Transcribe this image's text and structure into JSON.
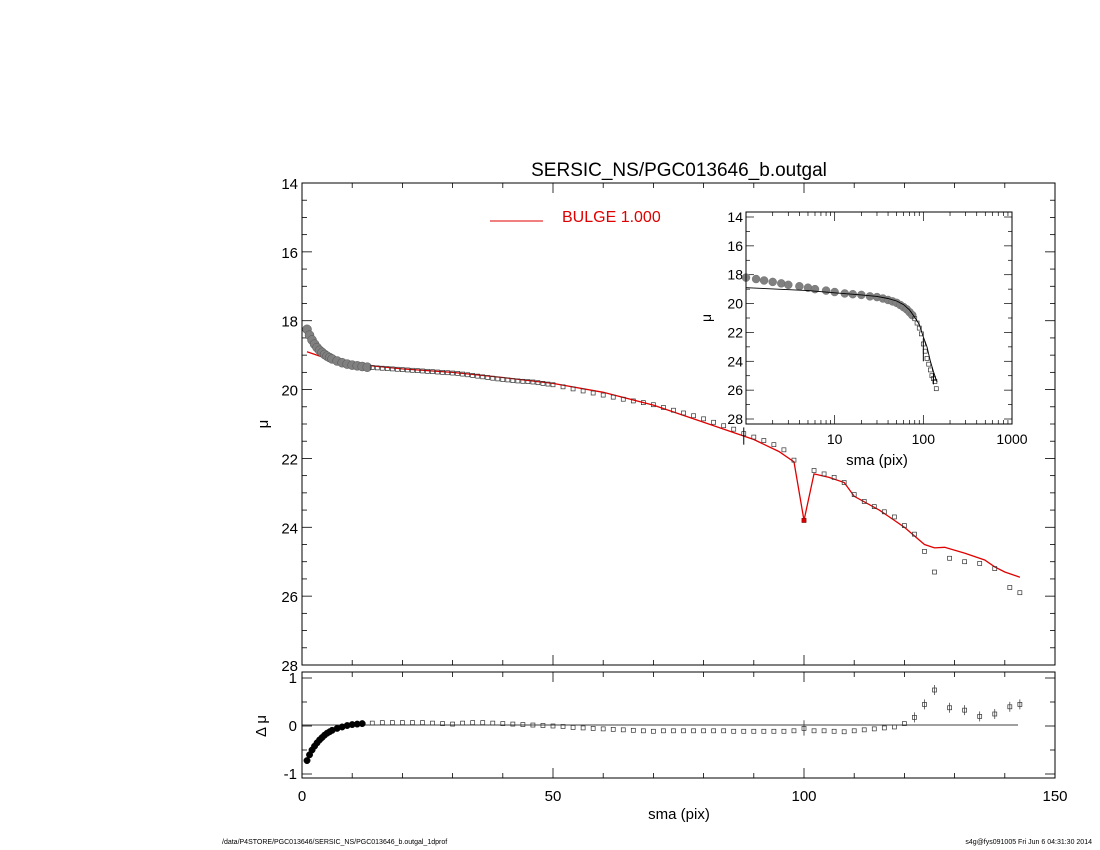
{
  "chart_data": [
    {
      "type": "scatter",
      "title": "SERSIC_NS/PGC013646_b.outgal",
      "xlabel": "",
      "ylabel": "μ",
      "xlim": [
        0,
        150
      ],
      "ylim": [
        28,
        14
      ],
      "y_inverted": true,
      "x_ticks": [
        0,
        50,
        100,
        150
      ],
      "y_ticks": [
        14,
        16,
        18,
        20,
        22,
        24,
        26,
        28
      ],
      "y_tick_labels": [
        "14",
        "16",
        "18",
        "20",
        "22",
        "24",
        "26",
        "28"
      ],
      "legend": {
        "label": "BULGE  1.000",
        "color": "#e00000",
        "placement": "top-center"
      },
      "series": [
        {
          "kind": "data-points",
          "x": [
            1,
            1.5,
            2,
            2.5,
            3,
            3.5,
            4,
            4.5,
            5,
            5.5,
            6,
            7,
            8,
            9,
            10,
            11,
            12,
            13,
            14,
            15,
            16,
            17,
            18,
            19,
            20,
            21,
            22,
            23,
            24,
            25,
            26,
            27,
            28,
            29,
            30,
            31,
            32,
            33,
            34,
            35,
            36,
            37,
            38,
            39,
            40,
            41,
            42,
            43,
            44,
            45,
            46,
            47,
            48,
            49,
            50,
            52,
            54,
            56,
            58,
            60,
            62,
            64,
            66,
            68,
            70,
            72,
            74,
            76,
            78,
            80,
            82,
            84,
            86,
            88,
            90,
            92,
            94,
            96,
            98,
            100,
            102,
            104,
            106,
            108,
            110,
            112,
            114,
            116,
            118,
            120,
            122,
            124,
            126,
            129,
            132,
            135,
            138,
            141,
            143
          ],
          "values": [
            18.25,
            18.42,
            18.56,
            18.68,
            18.78,
            18.86,
            18.92,
            18.98,
            19.03,
            19.07,
            19.11,
            19.17,
            19.22,
            19.26,
            19.29,
            19.31,
            19.33,
            19.35,
            19.36,
            19.37,
            19.38,
            19.39,
            19.4,
            19.41,
            19.42,
            19.43,
            19.44,
            19.45,
            19.46,
            19.47,
            19.48,
            19.49,
            19.5,
            19.51,
            19.52,
            19.53,
            19.55,
            19.57,
            19.59,
            19.61,
            19.63,
            19.65,
            19.67,
            19.69,
            19.71,
            19.72,
            19.74,
            19.75,
            19.76,
            19.77,
            19.78,
            19.8,
            19.82,
            19.84,
            19.86,
            19.92,
            19.98,
            20.04,
            20.1,
            20.16,
            20.22,
            20.28,
            20.33,
            20.38,
            20.44,
            20.52,
            20.6,
            20.68,
            20.76,
            20.85,
            20.95,
            21.05,
            21.15,
            21.28,
            21.38,
            21.48,
            21.6,
            21.75,
            22.05,
            23.8,
            22.35,
            22.45,
            22.55,
            22.7,
            23.05,
            23.25,
            23.4,
            23.55,
            23.7,
            23.95,
            24.2,
            24.7,
            25.3,
            24.9,
            25.0,
            25.05,
            25.2,
            25.75,
            25.9
          ]
        },
        {
          "kind": "model",
          "name": "BULGE  1.000",
          "color": "#e00000",
          "x": [
            1,
            5,
            10,
            20,
            30,
            40,
            50,
            60,
            70,
            80,
            90,
            95,
            98,
            100,
            102,
            105,
            108,
            110,
            115,
            118,
            120,
            122,
            124,
            126,
            128,
            132,
            136,
            138,
            140,
            143
          ],
          "values": [
            18.9,
            19.1,
            19.25,
            19.4,
            19.5,
            19.65,
            19.82,
            20.08,
            20.45,
            20.95,
            21.45,
            21.8,
            22.1,
            23.8,
            22.45,
            22.55,
            22.7,
            23.1,
            23.5,
            23.8,
            24.0,
            24.25,
            24.5,
            24.6,
            24.58,
            24.75,
            24.95,
            25.15,
            25.3,
            25.45
          ]
        }
      ]
    },
    {
      "type": "scatter",
      "xlabel": "sma (pix)",
      "ylabel": "Δ μ",
      "xlim": [
        0,
        150
      ],
      "ylim": [
        -1,
        1
      ],
      "x_ticks": [
        0,
        50,
        100,
        150
      ],
      "y_ticks": [
        -1,
        0,
        1
      ],
      "y_tick_labels": [
        "-1",
        "0",
        "1"
      ],
      "x_tick_labels": [
        "0",
        "50",
        "100",
        "150"
      ],
      "series": [
        {
          "kind": "residuals",
          "x": [
            1,
            1.5,
            2,
            2.5,
            3,
            3.5,
            4,
            4.5,
            5,
            5.5,
            6,
            7,
            8,
            9,
            10,
            11,
            12,
            14,
            16,
            18,
            20,
            22,
            24,
            26,
            28,
            30,
            32,
            34,
            36,
            38,
            40,
            42,
            44,
            46,
            48,
            50,
            52,
            54,
            56,
            58,
            60,
            62,
            64,
            66,
            68,
            70,
            72,
            74,
            76,
            78,
            80,
            82,
            84,
            86,
            88,
            90,
            92,
            94,
            96,
            98,
            100,
            102,
            104,
            106,
            108,
            110,
            112,
            114,
            116,
            118,
            120,
            122,
            124,
            126,
            129,
            132,
            135,
            138,
            141,
            143
          ],
          "values": [
            -0.72,
            -0.6,
            -0.5,
            -0.42,
            -0.35,
            -0.29,
            -0.24,
            -0.19,
            -0.15,
            -0.12,
            -0.09,
            -0.05,
            -0.02,
            0.01,
            0.03,
            0.04,
            0.05,
            0.06,
            0.07,
            0.07,
            0.07,
            0.07,
            0.07,
            0.06,
            0.05,
            0.04,
            0.06,
            0.07,
            0.07,
            0.06,
            0.05,
            0.04,
            0.03,
            0.02,
            0.01,
            0.0,
            -0.01,
            -0.03,
            -0.04,
            -0.05,
            -0.06,
            -0.07,
            -0.08,
            -0.09,
            -0.1,
            -0.11,
            -0.1,
            -0.1,
            -0.1,
            -0.1,
            -0.1,
            -0.1,
            -0.1,
            -0.11,
            -0.11,
            -0.11,
            -0.11,
            -0.11,
            -0.11,
            -0.1,
            -0.05,
            -0.1,
            -0.1,
            -0.11,
            -0.12,
            -0.1,
            -0.08,
            -0.06,
            -0.04,
            -0.02,
            0.05,
            0.18,
            0.45,
            0.75,
            0.38,
            0.33,
            0.2,
            0.25,
            0.4,
            0.45
          ]
        }
      ]
    },
    {
      "type": "scatter",
      "kind": "inset",
      "xlabel": "sma (pix)",
      "ylabel": "μ",
      "x_scale": "log",
      "xlim": [
        1,
        1000
      ],
      "ylim": [
        28,
        14
      ],
      "y_inverted": true,
      "x_tick_labels": [
        "10",
        "100",
        "1000"
      ],
      "x_ticks": [
        10,
        100,
        1000
      ],
      "y_ticks": [
        14,
        16,
        18,
        20,
        22,
        24,
        26,
        28
      ],
      "y_tick_labels": [
        "14",
        "16",
        "18",
        "20",
        "22",
        "24",
        "26",
        "28"
      ],
      "series": [
        {
          "kind": "data-points",
          "x": [
            1,
            1.3,
            1.6,
            2,
            2.5,
            3,
            4,
            5,
            6,
            8,
            10,
            13,
            16,
            20,
            25,
            30,
            35,
            40,
            45,
            50,
            55,
            60,
            65,
            70,
            75,
            80,
            85,
            90,
            95,
            100,
            105,
            110,
            115,
            120,
            125,
            130,
            135,
            140
          ],
          "values": [
            18.2,
            18.3,
            18.4,
            18.5,
            18.6,
            18.7,
            18.8,
            18.9,
            19.0,
            19.1,
            19.2,
            19.3,
            19.35,
            19.4,
            19.5,
            19.55,
            19.65,
            19.75,
            19.85,
            19.95,
            20.1,
            20.25,
            20.4,
            20.6,
            20.8,
            21.05,
            21.35,
            21.7,
            22.1,
            22.8,
            23.3,
            23.8,
            24.2,
            24.6,
            25.0,
            25.2,
            25.4,
            25.9
          ]
        },
        {
          "kind": "model",
          "x": [
            1,
            2,
            5,
            10,
            20,
            30,
            40,
            50,
            60,
            70,
            80,
            90,
            100,
            110,
            120,
            130,
            143
          ],
          "values": [
            18.9,
            18.98,
            19.1,
            19.25,
            19.4,
            19.5,
            19.65,
            19.82,
            20.08,
            20.45,
            20.95,
            21.45,
            22.3,
            23.0,
            24.0,
            24.7,
            25.45
          ]
        }
      ]
    }
  ],
  "footer": {
    "left": "/data/P4STORE/PGC013646/SERSIC_NS/PGC013646_b.outgal_1dprof",
    "right": "s4g@fys091005  Fri Jun  6 04:31:30 2014"
  }
}
